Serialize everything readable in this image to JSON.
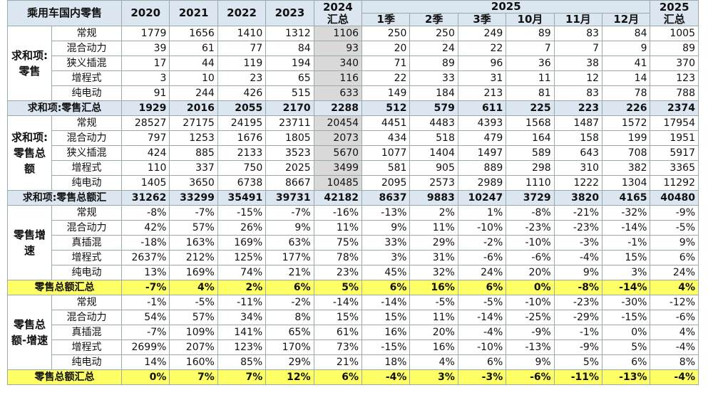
{
  "header": {
    "title": "乘用车国内零售",
    "columns": [
      "2020",
      "2021",
      "2022",
      "2023",
      "2024 汇总"
    ],
    "group": "2025",
    "subcolumns": [
      "1季",
      "2季",
      "3季",
      "10月",
      "11月",
      "12月"
    ],
    "last": "2025 汇总"
  },
  "sections": [
    {
      "label": "求和项:零售",
      "rows": [
        {
          "name": "常规",
          "cells": [
            1779,
            1656,
            1410,
            1312,
            1106,
            250,
            250,
            249,
            89,
            83,
            84,
            1005
          ]
        },
        {
          "name": "混合动力",
          "cells": [
            39,
            61,
            77,
            84,
            93,
            20,
            24,
            22,
            7,
            7,
            9,
            89
          ]
        },
        {
          "name": "狭义插混",
          "cells": [
            17,
            44,
            119,
            194,
            340,
            71,
            89,
            96,
            36,
            38,
            41,
            370
          ]
        },
        {
          "name": "增程式",
          "cells": [
            3,
            10,
            23,
            65,
            116,
            22,
            33,
            31,
            11,
            12,
            14,
            123
          ]
        },
        {
          "name": "纯电动",
          "cells": [
            91,
            244,
            426,
            515,
            633,
            149,
            184,
            213,
            81,
            83,
            78,
            788
          ]
        }
      ],
      "total": {
        "name": "求和项:零售汇总",
        "cells": [
          1929,
          2016,
          2055,
          2170,
          2288,
          512,
          579,
          611,
          225,
          223,
          226,
          2374
        ]
      }
    },
    {
      "label": "求和项:零售总额",
      "rows": [
        {
          "name": "常规",
          "cells": [
            28527,
            27175,
            24195,
            23711,
            20454,
            4451,
            4483,
            4393,
            1568,
            1487,
            1572,
            17954
          ]
        },
        {
          "name": "混合动力",
          "cells": [
            797,
            1253,
            1676,
            1805,
            2073,
            434,
            518,
            479,
            164,
            158,
            199,
            1951
          ]
        },
        {
          "name": "狭义插混",
          "cells": [
            424,
            885,
            2133,
            3523,
            5670,
            1077,
            1404,
            1497,
            589,
            643,
            708,
            5917
          ]
        },
        {
          "name": "增程式",
          "cells": [
            110,
            337,
            750,
            2025,
            3499,
            581,
            905,
            889,
            298,
            310,
            382,
            3365
          ]
        },
        {
          "name": "纯电动",
          "cells": [
            1405,
            3650,
            6738,
            8667,
            10485,
            2095,
            2573,
            2989,
            1110,
            1222,
            1304,
            11292
          ]
        }
      ],
      "total": {
        "name": "求和项:零售总额汇",
        "cells": [
          31262,
          33299,
          35491,
          39731,
          42182,
          8637,
          9883,
          10247,
          3729,
          3820,
          4165,
          40480
        ]
      }
    },
    {
      "label": "零售增速",
      "rows": [
        {
          "name": "常规",
          "cells": [
            "-8%",
            "-7%",
            "-15%",
            "-7%",
            "-16%",
            "-13%",
            "2%",
            "1%",
            "-8%",
            "-21%",
            "-32%",
            "-9%"
          ]
        },
        {
          "name": "混合动力",
          "cells": [
            "42%",
            "57%",
            "26%",
            "9%",
            "11%",
            "9%",
            "11%",
            "-10%",
            "-23%",
            "-23%",
            "-14%",
            "-5%"
          ]
        },
        {
          "name": "真插混",
          "cells": [
            "-18%",
            "163%",
            "169%",
            "63%",
            "75%",
            "33%",
            "29%",
            "-2%",
            "-10%",
            "-3%",
            "-1%",
            "9%"
          ]
        },
        {
          "name": "增程式",
          "cells": [
            "2637%",
            "212%",
            "125%",
            "177%",
            "78%",
            "3%",
            "31%",
            "-6%",
            "-6%",
            "-4%",
            "15%",
            "6%"
          ]
        },
        {
          "name": "纯电动",
          "cells": [
            "13%",
            "169%",
            "74%",
            "21%",
            "23%",
            "45%",
            "32%",
            "24%",
            "20%",
            "9%",
            "3%",
            "24%"
          ]
        }
      ],
      "total": {
        "name": "零售总额汇总",
        "cells": [
          "-7%",
          "4%",
          "2%",
          "6%",
          "5%",
          "6%",
          "16%",
          "6%",
          "0%",
          "-8%",
          "-14%",
          "4%"
        ]
      }
    },
    {
      "label": "零售总额-增速",
      "rows": [
        {
          "name": "常规",
          "cells": [
            "-1%",
            "-5%",
            "-11%",
            "-2%",
            "-14%",
            "-14%",
            "-5%",
            "-5%",
            "-10%",
            "-23%",
            "-30%",
            "-12%"
          ]
        },
        {
          "name": "混合动力",
          "cells": [
            "54%",
            "57%",
            "34%",
            "8%",
            "15%",
            "15%",
            "11%",
            "-14%",
            "-25%",
            "-29%",
            "-15%",
            "-6%"
          ]
        },
        {
          "name": "真插混",
          "cells": [
            "-7%",
            "109%",
            "141%",
            "65%",
            "61%",
            "16%",
            "20%",
            "-4%",
            "-9%",
            "-1%",
            "0%",
            "4%"
          ]
        },
        {
          "name": "增程式",
          "cells": [
            "2699%",
            "207%",
            "123%",
            "170%",
            "73%",
            "-15%",
            "16%",
            "-10%",
            "-13%",
            "-9%",
            "5%",
            "-4%"
          ]
        },
        {
          "name": "纯电动",
          "cells": [
            "14%",
            "160%",
            "85%",
            "29%",
            "21%",
            "18%",
            "4%",
            "6%",
            "9%",
            "5%",
            "6%",
            "8%"
          ]
        }
      ],
      "total": {
        "name": "零售总额汇总",
        "cells": [
          "0%",
          "7%",
          "7%",
          "12%",
          "6%",
          "-4%",
          "3%",
          "-3%",
          "-6%",
          "-11%",
          "-13%",
          "-4%"
        ]
      }
    }
  ]
}
